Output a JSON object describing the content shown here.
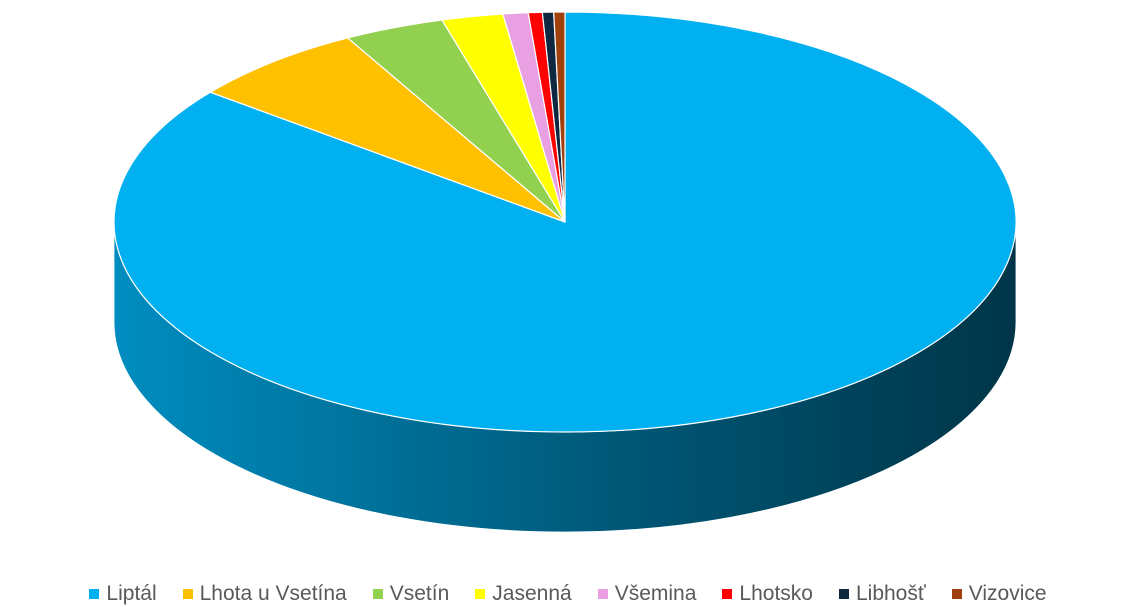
{
  "chart_data": {
    "type": "pie3d",
    "categories": [
      "Liptál",
      "Lhota u Vsetína",
      "Vsetín",
      "Jasenná",
      "Všemina",
      "Lhotsko",
      "Libhošť",
      "Vizovice"
    ],
    "values": [
      85.6,
      6.4,
      3.6,
      2.2,
      0.9,
      0.5,
      0.4,
      0.4
    ],
    "colors": [
      "#00b0f0",
      "#ffc000",
      "#92d050",
      "#ffff00",
      "#e8a0e2",
      "#ff0000",
      "#0e2841",
      "#a0410d"
    ],
    "legend": "bottom"
  }
}
